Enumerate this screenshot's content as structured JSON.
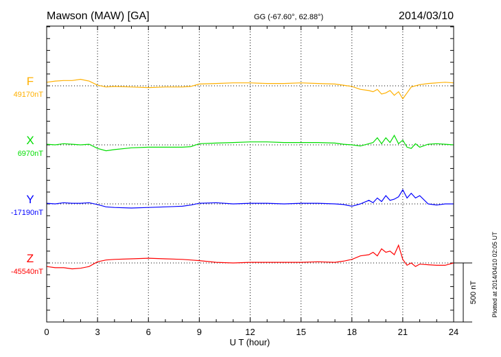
{
  "header": {
    "station": "Mawson (MAW)  [GA]",
    "coords": "GG (-67.60°,  62.88°)",
    "date": "2014/03/10"
  },
  "footer": {
    "plotted_at": "Plotted at 2014/04/10 02:05 UT",
    "scale_label": "500 nT"
  },
  "chart_data": {
    "type": "line",
    "xlabel": "U T (hour)",
    "ylabel": "",
    "xlim": [
      0,
      24
    ],
    "xticks": [
      "0",
      "3",
      "6",
      "9",
      "12",
      "15",
      "18",
      "21",
      "24"
    ],
    "scale_bar_nT": 500,
    "grid": "dotted at 3-hour intervals and at each series baseline",
    "series": [
      {
        "name": "F",
        "baseline_label": "49170nT",
        "color": "#ffb000",
        "x": [
          0,
          0.5,
          1,
          1.5,
          2,
          2.5,
          3,
          3.5,
          4,
          5,
          6,
          7,
          8,
          8.5,
          9,
          10,
          11,
          12,
          13,
          14,
          15,
          16,
          17,
          17.5,
          18,
          18.5,
          19,
          19.25,
          19.5,
          19.75,
          20,
          20.25,
          20.5,
          20.75,
          21,
          21.25,
          21.5,
          21.75,
          22,
          22.5,
          23,
          23.5,
          24
        ],
        "y": [
          30,
          40,
          45,
          45,
          55,
          40,
          5,
          -10,
          -5,
          -10,
          -15,
          -10,
          -10,
          -5,
          15,
          20,
          25,
          25,
          20,
          20,
          25,
          20,
          15,
          5,
          -5,
          -30,
          -40,
          -50,
          -30,
          -70,
          -60,
          -40,
          -80,
          -50,
          -110,
          -60,
          -10,
          0,
          10,
          20,
          25,
          30,
          25
        ]
      },
      {
        "name": "X",
        "baseline_label": "6970nT",
        "color": "#00dd00",
        "x": [
          0,
          0.5,
          1,
          1.5,
          2,
          2.5,
          3,
          3.5,
          4,
          5,
          6,
          7,
          8,
          8.5,
          9,
          10,
          11,
          12,
          13,
          14,
          15,
          16,
          17,
          17.5,
          18,
          18.5,
          19,
          19.25,
          19.5,
          19.75,
          20,
          20.25,
          20.5,
          20.75,
          21,
          21.25,
          21.5,
          21.75,
          22,
          22.5,
          23,
          23.5,
          24
        ],
        "y": [
          5,
          0,
          10,
          5,
          0,
          5,
          -30,
          -50,
          -40,
          -25,
          -20,
          -20,
          -20,
          -15,
          10,
          15,
          20,
          25,
          25,
          20,
          20,
          20,
          15,
          5,
          0,
          -10,
          10,
          20,
          60,
          10,
          60,
          20,
          80,
          10,
          40,
          -20,
          -30,
          10,
          -20,
          5,
          10,
          5,
          0
        ]
      },
      {
        "name": "Y",
        "baseline_label": "-17190nT",
        "color": "#0000ff",
        "x": [
          0,
          0.5,
          1,
          1.5,
          2,
          2.5,
          3,
          3.5,
          4,
          5,
          6,
          7,
          8,
          8.5,
          9,
          10,
          11,
          12,
          13,
          14,
          15,
          16,
          17,
          17.5,
          18,
          18.5,
          19,
          19.25,
          19.5,
          19.75,
          20,
          20.25,
          20.5,
          20.75,
          21,
          21.25,
          21.5,
          21.75,
          22,
          22.5,
          23,
          23.5,
          24
        ],
        "y": [
          5,
          0,
          10,
          5,
          5,
          10,
          -5,
          -25,
          -30,
          -35,
          -30,
          -25,
          -20,
          -10,
          5,
          10,
          0,
          5,
          5,
          0,
          5,
          5,
          0,
          -5,
          -20,
          0,
          30,
          10,
          50,
          20,
          70,
          30,
          40,
          60,
          120,
          50,
          90,
          50,
          70,
          0,
          -10,
          0,
          0
        ]
      },
      {
        "name": "Z",
        "baseline_label": "-45540nT",
        "color": "#ff0000",
        "x": [
          0,
          0.5,
          1,
          1.5,
          2,
          2.5,
          3,
          3.5,
          4,
          5,
          6,
          7,
          8,
          8.5,
          9,
          10,
          11,
          12,
          13,
          14,
          15,
          16,
          17,
          17.5,
          18,
          18.5,
          19,
          19.25,
          19.5,
          19.75,
          20,
          20.25,
          20.5,
          20.75,
          21,
          21.25,
          21.5,
          21.75,
          22,
          22.5,
          23,
          23.5,
          24
        ],
        "y": [
          -30,
          -40,
          -40,
          -50,
          -45,
          -30,
          10,
          25,
          30,
          35,
          40,
          35,
          30,
          25,
          20,
          5,
          0,
          5,
          5,
          5,
          5,
          10,
          5,
          15,
          30,
          60,
          70,
          90,
          60,
          120,
          90,
          100,
          70,
          150,
          30,
          -20,
          0,
          -30,
          -10,
          -15,
          -20,
          -20,
          0
        ]
      }
    ]
  }
}
